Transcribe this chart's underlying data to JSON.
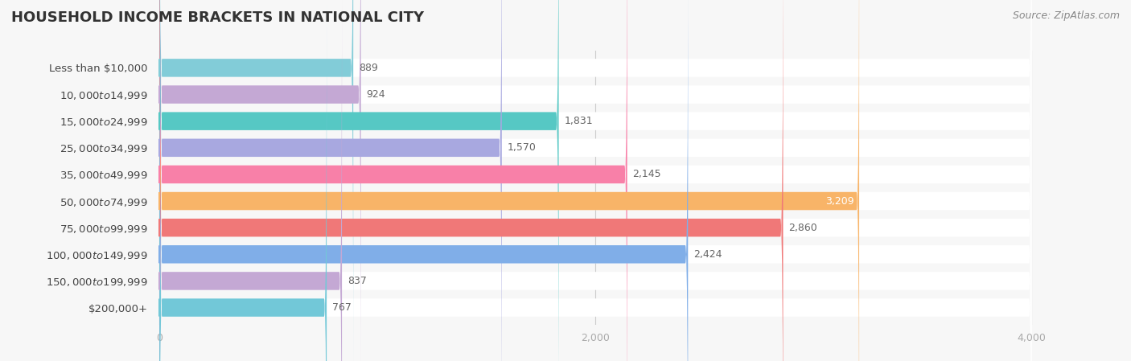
{
  "title": "HOUSEHOLD INCOME BRACKETS IN NATIONAL CITY",
  "source": "Source: ZipAtlas.com",
  "categories": [
    "Less than $10,000",
    "$10,000 to $14,999",
    "$15,000 to $24,999",
    "$25,000 to $34,999",
    "$35,000 to $49,999",
    "$50,000 to $74,999",
    "$75,000 to $99,999",
    "$100,000 to $149,999",
    "$150,000 to $199,999",
    "$200,000+"
  ],
  "values": [
    889,
    924,
    1831,
    1570,
    2145,
    3209,
    2860,
    2424,
    837,
    767
  ],
  "bar_colors": [
    "#82ccd8",
    "#c4a8d4",
    "#56c8c4",
    "#a8a8e0",
    "#f880a8",
    "#f8b468",
    "#f07878",
    "#80aee8",
    "#c4a8d4",
    "#72c8d8"
  ],
  "value_label_colors": [
    "#666666",
    "#666666",
    "#666666",
    "#666666",
    "#666666",
    "#ffffff",
    "#666666",
    "#666666",
    "#666666",
    "#666666"
  ],
  "value_label_inside": [
    false,
    false,
    false,
    false,
    false,
    true,
    false,
    false,
    false,
    false
  ],
  "xmax": 4000,
  "xticks": [
    0,
    2000,
    4000
  ],
  "background_color": "#f7f7f7",
  "row_bg_color": "#ffffff",
  "title_fontsize": 13,
  "label_fontsize": 9.5,
  "value_fontsize": 9,
  "source_fontsize": 9,
  "tick_fontsize": 9
}
